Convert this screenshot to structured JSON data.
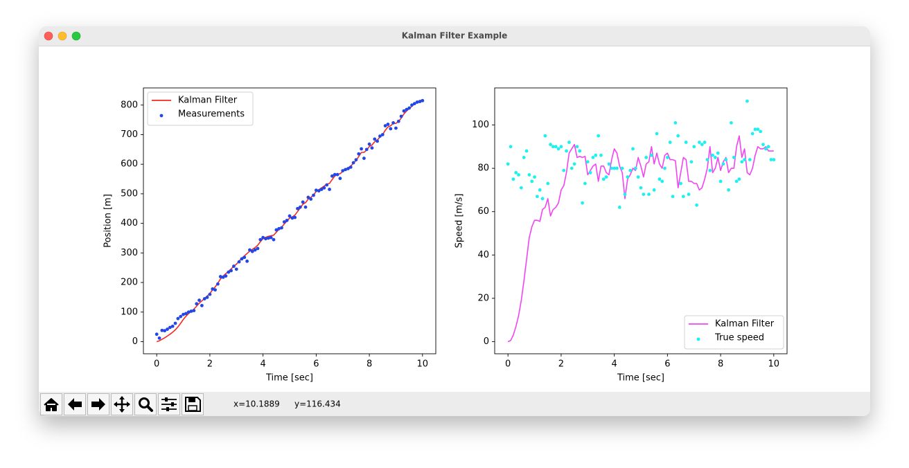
{
  "window": {
    "title": "Kalman Filter Example"
  },
  "status": {
    "x": "x=10.1889",
    "y": "y=116.434"
  },
  "chart_data": [
    {
      "type": "line",
      "xlabel": "Time [sec]",
      "ylabel": "Position [m]",
      "xlim": [
        -0.5,
        10.5
      ],
      "ylim": [
        -41,
        858
      ],
      "xticks": [
        0,
        2,
        4,
        6,
        8,
        10
      ],
      "yticks": [
        0,
        100,
        200,
        300,
        400,
        500,
        600,
        700,
        800
      ],
      "legend": "upper left",
      "x": [
        0,
        0.1,
        0.2,
        0.3,
        0.4,
        0.5,
        0.6,
        0.7,
        0.8,
        0.9,
        1,
        1.1,
        1.2,
        1.3,
        1.4,
        1.5,
        1.6,
        1.7,
        1.8,
        1.9,
        2,
        2.1,
        2.2,
        2.3,
        2.4,
        2.5,
        2.6,
        2.7,
        2.8,
        2.9,
        3,
        3.1,
        3.2,
        3.3,
        3.4,
        3.5,
        3.6,
        3.7,
        3.8,
        3.9,
        4,
        4.1,
        4.2,
        4.3,
        4.4,
        4.5,
        4.6,
        4.7,
        4.8,
        4.9,
        5,
        5.1,
        5.2,
        5.3,
        5.4,
        5.5,
        5.6,
        5.7,
        5.8,
        5.9,
        6,
        6.1,
        6.2,
        6.3,
        6.4,
        6.5,
        6.6,
        6.7,
        6.8,
        6.9,
        7,
        7.1,
        7.2,
        7.3,
        7.4,
        7.5,
        7.6,
        7.7,
        7.8,
        7.9,
        8,
        8.1,
        8.2,
        8.3,
        8.4,
        8.5,
        8.6,
        8.7,
        8.8,
        8.9,
        9,
        9.1,
        9.2,
        9.3,
        9.4,
        9.5,
        9.6,
        9.7,
        9.8,
        9.9,
        10
      ],
      "series": [
        {
          "name": "Kalman Filter",
          "kind": "line",
          "color": "#f5281e",
          "values": [
            0,
            3,
            8,
            13,
            19,
            25,
            32,
            40,
            50,
            62,
            75,
            86,
            95,
            102,
            110,
            120,
            130,
            138,
            146,
            154,
            163,
            175,
            185,
            198,
            212,
            222,
            230,
            238,
            246,
            255,
            262,
            272,
            282,
            290,
            298,
            306,
            312,
            318,
            326,
            338,
            348,
            353,
            356,
            358,
            360,
            370,
            380,
            387,
            398,
            408,
            418,
            422,
            428,
            440,
            452,
            465,
            470,
            482,
            488,
            496,
            508,
            514,
            520,
            526,
            533,
            535,
            548,
            560,
            566,
            568,
            575,
            582,
            588,
            594,
            603,
            613,
            626,
            640,
            640,
            648,
            660,
            665,
            676,
            682,
            692,
            700,
            715,
            726,
            730,
            738,
            738,
            745,
            756,
            770,
            780,
            788,
            796,
            805,
            810,
            815,
            818
          ]
        },
        {
          "name": "Measurements",
          "kind": "scatter",
          "color": "#2346e6",
          "values": [
            25,
            12,
            38,
            37,
            42,
            48,
            52,
            62,
            78,
            85,
            92,
            95,
            100,
            103,
            105,
            128,
            140,
            122,
            145,
            150,
            160,
            178,
            175,
            195,
            220,
            218,
            222,
            235,
            240,
            255,
            245,
            270,
            280,
            285,
            272,
            310,
            305,
            310,
            315,
            345,
            352,
            348,
            350,
            352,
            345,
            378,
            382,
            385,
            405,
            410,
            425,
            418,
            420,
            450,
            455,
            472,
            455,
            488,
            482,
            495,
            512,
            510,
            515,
            520,
            530,
            515,
            560,
            565,
            565,
            552,
            578,
            582,
            585,
            590,
            605,
            615,
            635,
            652,
            620,
            650,
            668,
            655,
            685,
            678,
            695,
            700,
            730,
            735,
            720,
            740,
            722,
            745,
            762,
            780,
            785,
            790,
            800,
            805,
            810,
            812,
            815
          ]
        }
      ]
    },
    {
      "type": "line",
      "xlabel": "Time [sec]",
      "ylabel": "Speed [m/s]",
      "xlim": [
        -0.5,
        10.5
      ],
      "ylim": [
        -5.6,
        117.1
      ],
      "xticks": [
        0,
        2,
        4,
        6,
        8,
        10
      ],
      "yticks": [
        0,
        20,
        40,
        60,
        80,
        100
      ],
      "legend": "lower right",
      "x": [
        0,
        0.1,
        0.2,
        0.3,
        0.4,
        0.5,
        0.6,
        0.7,
        0.8,
        0.9,
        1,
        1.1,
        1.2,
        1.3,
        1.4,
        1.5,
        1.6,
        1.7,
        1.8,
        1.9,
        2,
        2.1,
        2.2,
        2.3,
        2.4,
        2.5,
        2.6,
        2.7,
        2.8,
        2.9,
        3,
        3.1,
        3.2,
        3.3,
        3.4,
        3.5,
        3.6,
        3.7,
        3.8,
        3.9,
        4,
        4.1,
        4.2,
        4.3,
        4.4,
        4.5,
        4.6,
        4.7,
        4.8,
        4.9,
        5,
        5.1,
        5.2,
        5.3,
        5.4,
        5.5,
        5.6,
        5.7,
        5.8,
        5.9,
        6,
        6.1,
        6.2,
        6.3,
        6.4,
        6.5,
        6.6,
        6.7,
        6.8,
        6.9,
        7,
        7.1,
        7.2,
        7.3,
        7.4,
        7.5,
        7.6,
        7.7,
        7.8,
        7.9,
        8,
        8.1,
        8.2,
        8.3,
        8.4,
        8.5,
        8.6,
        8.7,
        8.8,
        8.9,
        9,
        9.1,
        9.2,
        9.3,
        9.4,
        9.5,
        9.6,
        9.7,
        9.8,
        9.9,
        10
      ],
      "series": [
        {
          "name": "Kalman Filter",
          "kind": "line",
          "color": "#f044f4",
          "values": [
            0,
            0.5,
            3,
            7,
            12,
            19,
            28,
            38,
            48,
            53,
            56,
            56,
            55.5,
            61,
            62,
            66,
            58,
            61,
            62,
            64,
            70,
            72,
            78,
            87,
            89,
            91,
            85,
            85.5,
            85,
            85.5,
            77,
            79,
            81,
            82,
            74,
            81,
            81,
            78,
            77,
            84,
            89,
            87,
            81,
            78,
            66,
            75,
            77,
            80,
            79,
            85,
            81,
            76,
            82,
            83,
            90,
            82,
            87,
            82,
            80,
            86,
            87,
            84,
            84,
            83.5,
            71,
            78,
            85,
            84,
            74,
            74,
            73,
            73,
            70,
            71,
            75,
            80,
            90,
            78,
            80,
            85,
            79,
            83,
            85,
            78,
            80,
            80,
            90,
            95,
            85,
            89,
            78,
            77,
            80,
            86,
            90,
            89,
            89,
            90,
            88,
            88,
            88
          ]
        },
        {
          "name": "True speed",
          "kind": "scatter",
          "color": "#1ef0f0",
          "values": [
            82,
            90,
            75,
            78,
            77,
            71,
            85,
            88,
            77,
            74,
            76,
            67,
            70,
            66,
            95,
            73,
            91,
            90,
            90,
            89,
            90,
            79,
            88,
            92,
            80,
            82,
            90,
            88,
            64,
            73,
            83,
            78,
            85,
            86,
            95,
            86,
            75,
            76,
            82,
            80,
            80,
            80,
            62,
            80,
            68,
            76,
            79,
            89,
            80,
            76,
            71,
            68,
            85,
            68,
            86,
            70,
            96,
            75,
            74,
            80,
            85,
            92,
            67,
            101,
            95,
            73,
            67,
            92,
            68,
            83,
            90,
            63,
            92,
            91,
            92,
            84,
            79,
            86,
            85,
            87,
            74,
            82,
            84,
            70,
            101,
            85,
            74,
            75,
            83,
            84,
            111,
            84,
            96,
            98,
            98,
            97,
            91,
            89,
            90,
            84,
            84
          ]
        }
      ]
    }
  ]
}
